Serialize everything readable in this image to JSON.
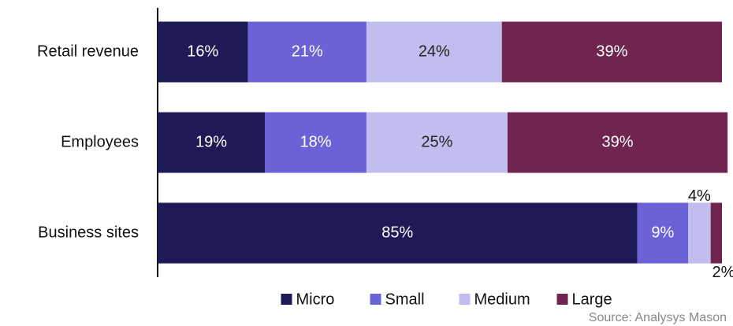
{
  "chart_data": {
    "type": "stacked-barh",
    "categories": [
      "Retail revenue",
      "Employees",
      "Business sites"
    ],
    "series": [
      {
        "name": "Micro",
        "color": "#1e1a55",
        "label_color": "#ffffff",
        "values": [
          16,
          19,
          85
        ],
        "value_labels": [
          "16%",
          "19%",
          "85%"
        ]
      },
      {
        "name": "Small",
        "color": "#6a62d6",
        "label_color": "#ffffff",
        "values": [
          21,
          18,
          9
        ],
        "value_labels": [
          "21%",
          "18%",
          "9%"
        ]
      },
      {
        "name": "Medium",
        "color": "#c1bdee",
        "label_color": "#222222",
        "values": [
          24,
          25,
          4
        ],
        "value_labels": [
          "24%",
          "25%",
          "4%"
        ]
      },
      {
        "name": "Large",
        "color": "#6f2550",
        "label_color": "#ffffff",
        "values": [
          39,
          39,
          2
        ],
        "value_labels": [
          "39%",
          "39%",
          "2%"
        ]
      }
    ],
    "xlim": [
      0,
      100
    ],
    "legend": "bottom",
    "source": "Source: Analysys Mason"
  }
}
